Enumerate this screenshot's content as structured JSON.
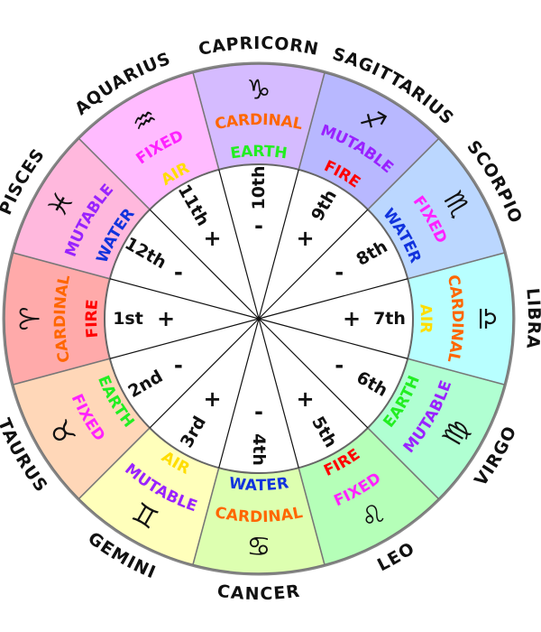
{
  "colors": {
    "fire": "#ff0000",
    "earth": "#22ee22",
    "air": "#ffdd00",
    "water": "#1133dd",
    "cardinal": "#ff6600",
    "fixed": "#ff22ff",
    "mutable": "#9922ff",
    "wedge_border": "#777777",
    "center_lines": "#111111"
  },
  "segments": [
    {
      "sign": "ARIES",
      "glyph": "♈",
      "modality": "CARDINAL",
      "element": "FIRE",
      "house": "1st",
      "polarity": "+",
      "color": "#ffaaaa",
      "show_sign_name": false
    },
    {
      "sign": "TAURUS",
      "glyph": "♉",
      "modality": "FIXED",
      "element": "EARTH",
      "house": "2nd",
      "polarity": "-",
      "color": "#ffd7b8"
    },
    {
      "sign": "GEMINI",
      "glyph": "♊",
      "modality": "MUTABLE",
      "element": "AIR",
      "house": "3rd",
      "polarity": "+",
      "color": "#ffffbb"
    },
    {
      "sign": "CANCER",
      "glyph": "♋",
      "modality": "CARDINAL",
      "element": "WATER",
      "house": "4th",
      "polarity": "-",
      "color": "#ddffb0"
    },
    {
      "sign": "LEO",
      "glyph": "♌",
      "modality": "FIXED",
      "element": "FIRE",
      "house": "5th",
      "polarity": "+",
      "color": "#b5ffb8"
    },
    {
      "sign": "VIRGO",
      "glyph": "♍",
      "modality": "MUTABLE",
      "element": "EARTH",
      "house": "6th",
      "polarity": "-",
      "color": "#b0ffd2"
    },
    {
      "sign": "LIBRA",
      "glyph": "♎",
      "modality": "CARDINAL",
      "element": "AIR",
      "house": "7th",
      "polarity": "+",
      "color": "#b8ffff"
    },
    {
      "sign": "SCORPIO",
      "glyph": "♏",
      "modality": "FIXED",
      "element": "WATER",
      "house": "8th",
      "polarity": "-",
      "color": "#bbd7ff"
    },
    {
      "sign": "SAGITTARIUS",
      "glyph": "♐",
      "modality": "MUTABLE",
      "element": "FIRE",
      "house": "9th",
      "polarity": "+",
      "color": "#b8b8ff"
    },
    {
      "sign": "CAPRICORN",
      "glyph": "♑",
      "modality": "CARDINAL",
      "element": "EARTH",
      "house": "10th",
      "polarity": "-",
      "color": "#d5bbff"
    },
    {
      "sign": "AQUARIUS",
      "glyph": "♒",
      "modality": "FIXED",
      "element": "AIR",
      "house": "11th",
      "polarity": "+",
      "color": "#ffbbff"
    },
    {
      "sign": "PISCES",
      "glyph": "♓",
      "modality": "MUTABLE",
      "element": "WATER",
      "house": "12th",
      "polarity": "-",
      "color": "#ffb8dd"
    }
  ]
}
